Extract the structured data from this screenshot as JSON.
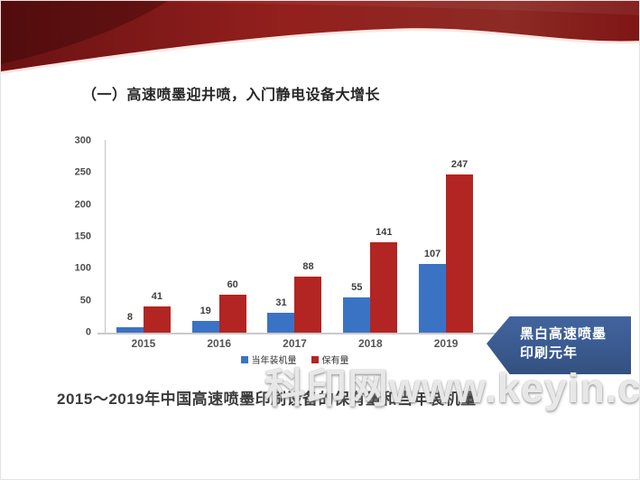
{
  "slide": {
    "title": "（一）高速喷墨迎井喷，入门静电设备大增长",
    "caption": "2015～2019年中国高速喷墨印刷设备的保有量和当年装机量",
    "callout": {
      "line1": "黑白高速喷墨",
      "line2": "印刷元年"
    },
    "watermark": "科印网www.keyin.cn"
  },
  "colors": {
    "header_red_dark": "#6b1214",
    "header_red_main": "#93201d",
    "header_red_right": "#8c2a24",
    "callout_blue": "#3a5a90",
    "bar_blue": "#3B73C4",
    "bar_red": "#B22522",
    "axis_gray": "#c4c4c4"
  },
  "chart_data": {
    "type": "bar",
    "title": "",
    "xlabel": "",
    "ylabel": "",
    "categories": [
      "2015",
      "2016",
      "2017",
      "2018",
      "2019"
    ],
    "series": [
      {
        "name": "当年装机量",
        "color": "#3B73C4",
        "values": [
          8,
          19,
          31,
          55,
          107
        ]
      },
      {
        "name": "保有量",
        "color": "#B22522",
        "values": [
          41,
          60,
          88,
          141,
          247
        ]
      }
    ],
    "ylim": [
      0,
      300
    ],
    "yticks": [
      0,
      50,
      100,
      150,
      200,
      250,
      300
    ],
    "grid": false,
    "legend_position": "bottom"
  }
}
